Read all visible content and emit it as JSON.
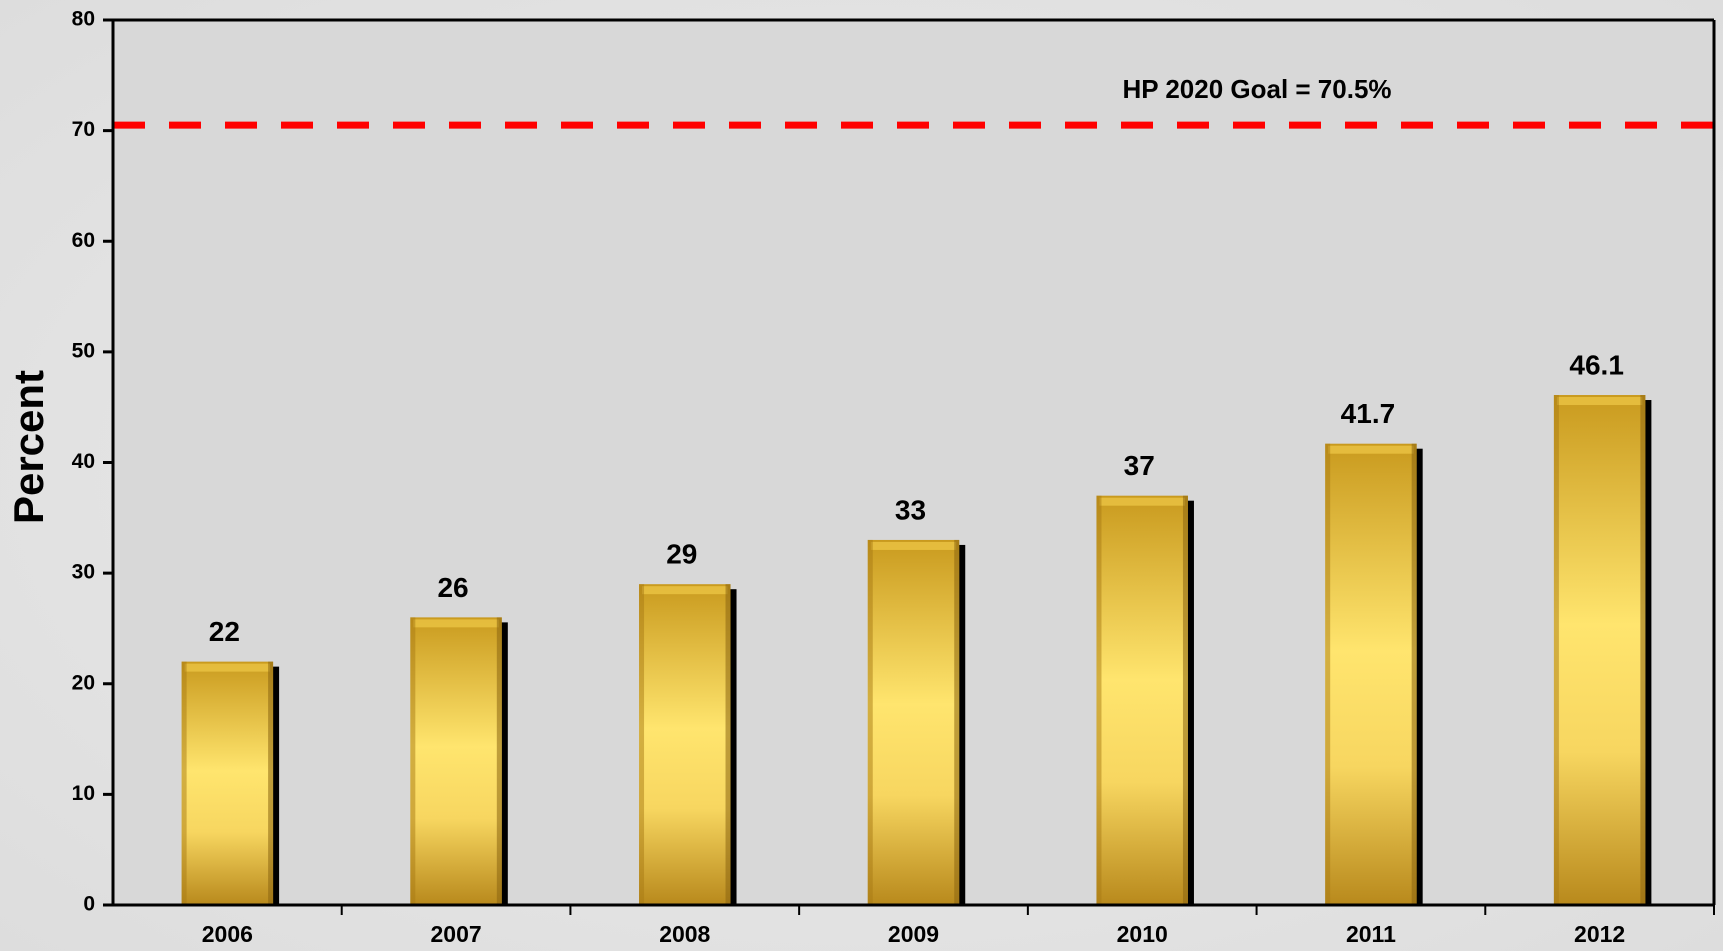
{
  "chart_data": {
    "type": "bar",
    "y_label": "Percent",
    "categories": [
      "2006",
      "2007",
      "2008",
      "2009",
      "2010",
      "2011",
      "2012"
    ],
    "values": [
      22,
      26,
      29,
      33,
      37,
      41.7,
      46.1
    ],
    "color": "#e8c040",
    "ylim": [
      0,
      80
    ],
    "yticks": [
      0,
      10,
      20,
      30,
      40,
      50,
      60,
      70,
      80
    ],
    "reference_line": {
      "value": 70.5,
      "label": "HP 2020 Goal = 70.5%",
      "color": "#ff0000"
    }
  }
}
